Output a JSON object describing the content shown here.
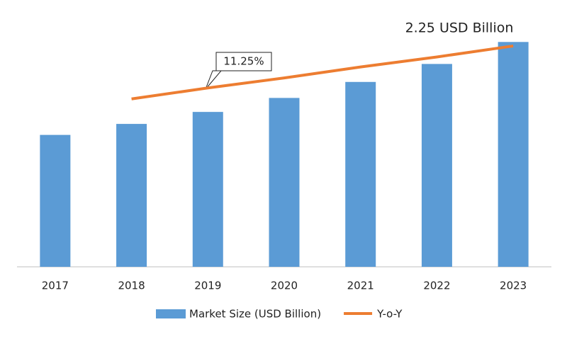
{
  "chart_data": {
    "type": "bar",
    "categories": [
      "2017",
      "2018",
      "2019",
      "2020",
      "2021",
      "2022",
      "2023"
    ],
    "series": [
      {
        "name": "Market Size (USD Billion)",
        "type": "bar",
        "color": "#5b9bd5",
        "values": [
          1.32,
          1.43,
          1.55,
          1.69,
          1.85,
          2.03,
          2.25
        ]
      },
      {
        "name": "Y-o-Y",
        "type": "line",
        "color": "#ed7d31",
        "values": [
          null,
          1.68,
          1.79,
          1.89,
          2.0,
          2.1,
          2.21
        ]
      }
    ],
    "annotations": [
      "2.25 USD Billion",
      "11.25%"
    ],
    "ylim": [
      0,
      2.5
    ],
    "legend": "bottom"
  }
}
